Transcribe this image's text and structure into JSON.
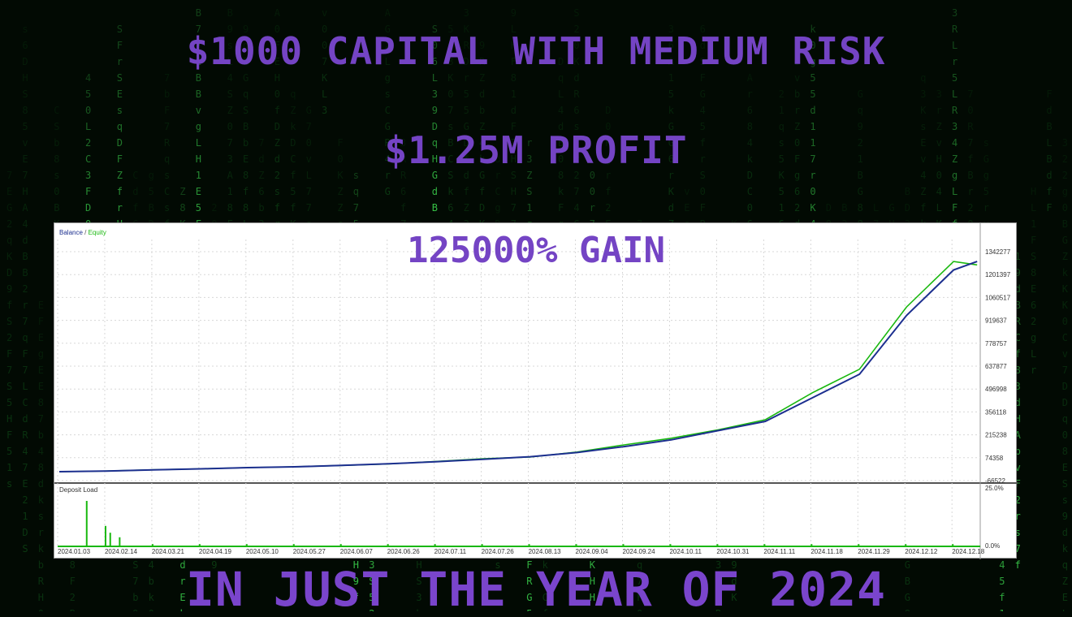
{
  "headlines": {
    "line1": "$1000 CAPITAL WITH MEDIUM RISK",
    "line2": "$1.25M PROFIT",
    "line3": "125000% GAIN",
    "line4": "IN JUST THE YEAR OF 2024"
  },
  "colors": {
    "headline": "#7444c4",
    "balance_line": "#1c2f8f",
    "equity_line": "#19b80f",
    "deposit_load_bars": "#19b80f"
  },
  "chart_data": [
    {
      "type": "line",
      "legend": {
        "balance": "Balance",
        "separator": " / ",
        "equity": "Equity"
      },
      "legend_position": "top-left",
      "grid": true,
      "y_ticks": [
        "1342277",
        "1201397",
        "1060517",
        "919637",
        "778757",
        "637877",
        "496998",
        "356118",
        "215238",
        "74358",
        "-66522"
      ],
      "ylim": [
        -66522,
        1342277
      ],
      "x_ticks": [
        "2024.01.03",
        "2024.02.14",
        "2024.03.21",
        "2024.04.19",
        "2024.05.10",
        "2024.05.27",
        "2024.06.07",
        "2024.06.26",
        "2024.07.11",
        "2024.07.26",
        "2024.08.13",
        "2024.09.04",
        "2024.09.24",
        "2024.10.11",
        "2024.10.31",
        "2024.11.11",
        "2024.11.18",
        "2024.11.29",
        "2024.12.12",
        "2024.12.18"
      ],
      "series": [
        {
          "name": "Balance",
          "x": [
            0,
            1,
            2,
            3,
            4,
            5,
            6,
            7,
            8,
            9,
            10,
            11,
            12,
            13,
            14,
            15,
            16,
            17,
            18,
            19,
            19.5
          ],
          "values": [
            1000,
            5000,
            12000,
            18000,
            25000,
            30000,
            38000,
            48000,
            60000,
            75000,
            90000,
            115000,
            150000,
            190000,
            245000,
            300000,
            440000,
            580000,
            930000,
            1200000,
            1250000
          ]
        },
        {
          "name": "Equity",
          "x": [
            0,
            1,
            2,
            3,
            4,
            5,
            6,
            7,
            8,
            9,
            10,
            11,
            12,
            13,
            14,
            15,
            16,
            17,
            18,
            19,
            19.5
          ],
          "values": [
            1000,
            5000,
            12000,
            18000,
            25000,
            30000,
            38000,
            47000,
            62000,
            78000,
            88000,
            118000,
            160000,
            200000,
            250000,
            310000,
            470000,
            610000,
            980000,
            1250000,
            1230000
          ]
        }
      ]
    },
    {
      "type": "bar",
      "title": "Deposit Load",
      "y_ticks": [
        "25.0%",
        "0.0%"
      ],
      "ylim": [
        0,
        25
      ],
      "x": [
        0.6,
        1.0,
        1.1,
        1.3,
        2.0,
        3.0,
        4.0,
        5.0,
        6.0,
        7.0,
        8.0,
        9.0,
        10.0,
        11.0,
        12.0,
        13.0,
        14.0,
        15.0,
        16.0,
        17.0,
        18.0,
        19.0
      ],
      "values": [
        20,
        9,
        6,
        4,
        1,
        1,
        1,
        1,
        1,
        1,
        1,
        1,
        1,
        1,
        1,
        1,
        1,
        1,
        1,
        1,
        1,
        1
      ]
    }
  ]
}
